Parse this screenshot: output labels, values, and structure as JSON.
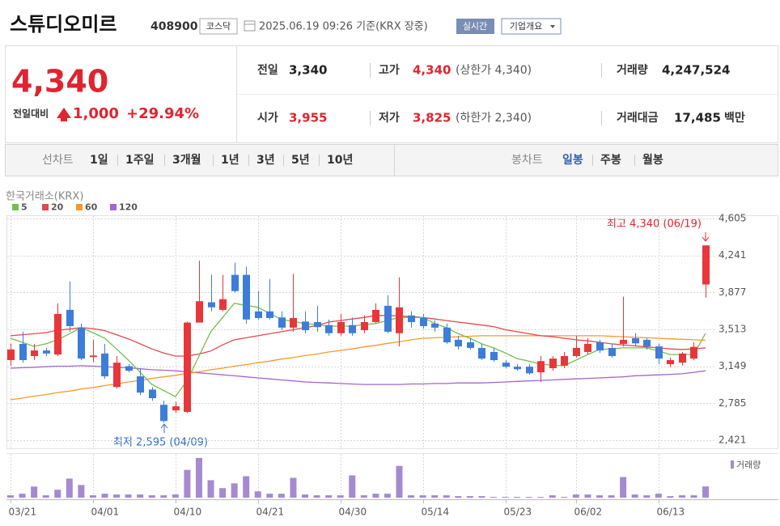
{
  "header": {
    "name": "스튜디오미르",
    "code": "408900",
    "market": "코스닥",
    "timestamp": "2025.06.19 09:26 기준(KRX 장중)",
    "realtime": "실시간",
    "overview": "기업개요"
  },
  "price": {
    "current": "4,340",
    "change_label": "전일대비",
    "change": "1,000",
    "change_rate": "+29.94%"
  },
  "summary": [
    [
      {
        "label": "전일",
        "value": "3,340"
      },
      {
        "label": "고가",
        "value": "4,340",
        "note": "(상한가 4,340)"
      },
      {
        "label": "거래량",
        "value": "4,247,524"
      }
    ],
    [
      {
        "label": "시가",
        "value": "3,955"
      },
      {
        "label": "저가",
        "value": "3,825",
        "note": "(하한가 2,340)"
      },
      {
        "label": "거래대금",
        "value": "17,485",
        "unit": "백만"
      }
    ]
  ],
  "tabs": {
    "line_label": "선차트",
    "line_items": [
      "1일",
      "1주일",
      "3개월",
      "1년",
      "3년",
      "5년",
      "10년"
    ],
    "candle_label": "봉차트",
    "candle_items": [
      "일봉",
      "주봉",
      "월봉"
    ],
    "active": "일봉"
  },
  "chart_data": {
    "type": "candlestick",
    "source": "한국거래소(KRX)",
    "categories": [
      "03/21",
      null,
      null,
      null,
      null,
      null,
      null,
      "04/01",
      null,
      null,
      null,
      null,
      null,
      null,
      "04/10",
      null,
      null,
      null,
      null,
      null,
      null,
      "04/21",
      null,
      null,
      null,
      null,
      null,
      null,
      "04/30",
      null,
      null,
      null,
      null,
      null,
      null,
      "05/14",
      null,
      null,
      null,
      null,
      null,
      null,
      "05/23",
      null,
      null,
      null,
      null,
      null,
      "06/02",
      null,
      null,
      null,
      null,
      null,
      null,
      "06/13",
      null,
      null,
      null,
      null
    ],
    "open": [
      3210,
      3370,
      3250,
      3305,
      3265,
      3705,
      3530,
      3240,
      3275,
      2945,
      3150,
      3050,
      2920,
      2770,
      2715,
      2700,
      3580,
      3780,
      3705,
      4050,
      4050,
      3690,
      3690,
      3630,
      3530,
      3590,
      3585,
      3555,
      3475,
      3555,
      3505,
      3585,
      3745,
      3475,
      3650,
      3625,
      3570,
      3530,
      3410,
      3385,
      3330,
      3290,
      3185,
      3145,
      3145,
      3090,
      3130,
      3155,
      3250,
      3290,
      3385,
      3330,
      3370,
      3425,
      3410,
      3345,
      3170,
      3185,
      3225,
      3955
    ],
    "high": [
      3370,
      3490,
      3370,
      3330,
      3770,
      3985,
      3570,
      3410,
      3370,
      3250,
      3170,
      3130,
      2945,
      2810,
      2800,
      3590,
      4190,
      4050,
      4050,
      4170,
      4130,
      3890,
      4010,
      3690,
      4060,
      3690,
      3745,
      3610,
      3665,
      3630,
      3650,
      3770,
      3850,
      4025,
      3690,
      3665,
      3600,
      3570,
      3450,
      3425,
      3370,
      3330,
      3210,
      3170,
      3170,
      3250,
      3250,
      3290,
      3450,
      3425,
      3410,
      3370,
      3835,
      3475,
      3425,
      3370,
      3235,
      3290,
      3385,
      4340
    ],
    "low": [
      3155,
      3185,
      3210,
      3250,
      3250,
      3490,
      3210,
      3190,
      3025,
      2930,
      3090,
      2865,
      2810,
      2595,
      2690,
      2690,
      3580,
      3690,
      3690,
      3875,
      3570,
      3610,
      3610,
      3505,
      3490,
      3475,
      3490,
      3450,
      3450,
      3450,
      3475,
      3570,
      3475,
      3345,
      3530,
      3520,
      3490,
      3370,
      3315,
      3315,
      3210,
      3195,
      3130,
      3105,
      3065,
      2995,
      3105,
      3130,
      3235,
      3265,
      3280,
      3235,
      3345,
      3345,
      3315,
      3170,
      3140,
      3155,
      3210,
      3825
    ],
    "close": [
      3315,
      3210,
      3305,
      3275,
      3665,
      3545,
      3225,
      3255,
      3050,
      3185,
      3105,
      2890,
      2835,
      2610,
      2755,
      3580,
      3790,
      3730,
      3810,
      3890,
      3610,
      3625,
      3625,
      3530,
      3625,
      3505,
      3535,
      3475,
      3585,
      3475,
      3585,
      3705,
      3490,
      3730,
      3585,
      3545,
      3530,
      3385,
      3345,
      3330,
      3225,
      3210,
      3145,
      3120,
      3080,
      3200,
      3225,
      3250,
      3330,
      3370,
      3305,
      3250,
      3410,
      3375,
      3345,
      3225,
      3210,
      3275,
      3340,
      4340
    ],
    "up_color": "#e8363a",
    "down_color": "#3c7dd9",
    "series": [
      {
        "name": "5",
        "color": "#72c04f",
        "values": [
          3425,
          3385,
          3345,
          3370,
          3410,
          3470,
          3530,
          3480,
          3425,
          3320,
          3210,
          3090,
          2970,
          2910,
          2850,
          3010,
          3250,
          3490,
          3630,
          3770,
          3750,
          3730,
          3670,
          3610,
          3590,
          3570,
          3560,
          3545,
          3545,
          3545,
          3560,
          3570,
          3600,
          3630,
          3630,
          3630,
          3570,
          3530,
          3470,
          3425,
          3370,
          3330,
          3280,
          3225,
          3200,
          3170,
          3160,
          3155,
          3210,
          3265,
          3315,
          3320,
          3330,
          3330,
          3330,
          3300,
          3265,
          3265,
          3265,
          3475
        ]
      },
      {
        "name": "20",
        "color": "#e5484d",
        "values": [
          3450,
          3460,
          3470,
          3480,
          3505,
          3515,
          3530,
          3520,
          3500,
          3460,
          3420,
          3370,
          3320,
          3280,
          3250,
          3250,
          3270,
          3300,
          3360,
          3410,
          3430,
          3450,
          3470,
          3490,
          3510,
          3530,
          3550,
          3585,
          3600,
          3615,
          3630,
          3650,
          3650,
          3645,
          3640,
          3630,
          3615,
          3600,
          3585,
          3570,
          3555,
          3540,
          3510,
          3490,
          3470,
          3450,
          3440,
          3425,
          3410,
          3400,
          3385,
          3370,
          3360,
          3350,
          3340,
          3330,
          3320,
          3315,
          3320,
          3330
        ]
      },
      {
        "name": "60",
        "color": "#f59a2b",
        "values": [
          2820,
          2835,
          2855,
          2870,
          2890,
          2905,
          2925,
          2940,
          2960,
          2975,
          2995,
          3010,
          3030,
          3045,
          3060,
          3080,
          3095,
          3115,
          3130,
          3150,
          3165,
          3185,
          3200,
          3220,
          3235,
          3255,
          3270,
          3290,
          3305,
          3320,
          3340,
          3355,
          3375,
          3390,
          3410,
          3425,
          3430,
          3435,
          3440,
          3445,
          3450,
          3450,
          3450,
          3450,
          3450,
          3450,
          3450,
          3450,
          3450,
          3450,
          3450,
          3445,
          3440,
          3435,
          3430,
          3425,
          3420,
          3415,
          3410,
          3405
        ]
      },
      {
        "name": "120",
        "color": "#a466cc",
        "values": [
          3130,
          3135,
          3140,
          3145,
          3150,
          3150,
          3155,
          3150,
          3145,
          3140,
          3135,
          3125,
          3115,
          3110,
          3105,
          3095,
          3085,
          3075,
          3065,
          3055,
          3045,
          3035,
          3025,
          3015,
          3005,
          2995,
          2990,
          2985,
          2980,
          2975,
          2970,
          2970,
          2970,
          2970,
          2975,
          2975,
          2980,
          2980,
          2985,
          2985,
          2985,
          2990,
          2995,
          3000,
          3005,
          3010,
          3015,
          3020,
          3025,
          3030,
          3035,
          3040,
          3045,
          3055,
          3060,
          3065,
          3070,
          3075,
          3090,
          3105
        ]
      }
    ],
    "volume": {
      "name": "거래량",
      "color": "#a58ad2",
      "ylim": [
        0,
        16500000
      ],
      "values": [
        900000,
        1500000,
        4200000,
        900000,
        3000000,
        7200000,
        4800000,
        900000,
        1500000,
        1200000,
        1200000,
        1200000,
        900000,
        900000,
        1200000,
        10500000,
        15000000,
        6600000,
        3600000,
        5400000,
        8100000,
        2400000,
        1500000,
        1500000,
        7500000,
        1200000,
        900000,
        900000,
        900000,
        8400000,
        900000,
        1500000,
        1500000,
        12000000,
        900000,
        900000,
        900000,
        900000,
        600000,
        600000,
        600000,
        300000,
        300000,
        300000,
        300000,
        300000,
        900000,
        300000,
        1200000,
        1200000,
        900000,
        900000,
        7800000,
        1200000,
        900000,
        1500000,
        600000,
        900000,
        900000,
        4247524
      ]
    },
    "ylim": [
      2357,
      4637
    ],
    "yticks": [
      {
        "value": 4605,
        "label": "4,605"
      },
      {
        "value": 4241,
        "label": "4,241"
      },
      {
        "value": 3877,
        "label": "3,877"
      },
      {
        "value": 3513,
        "label": "3,513"
      },
      {
        "value": 3149,
        "label": "3,149"
      },
      {
        "value": 2785,
        "label": "2,785"
      },
      {
        "value": 2421,
        "label": "2,421"
      }
    ],
    "grid": true,
    "annotations": [
      {
        "text": "최고 4,340 (06/19)",
        "color": "#e0242f"
      },
      {
        "text": "최저 2,595 (04/09)",
        "color": "#2a6fc4"
      }
    ]
  }
}
